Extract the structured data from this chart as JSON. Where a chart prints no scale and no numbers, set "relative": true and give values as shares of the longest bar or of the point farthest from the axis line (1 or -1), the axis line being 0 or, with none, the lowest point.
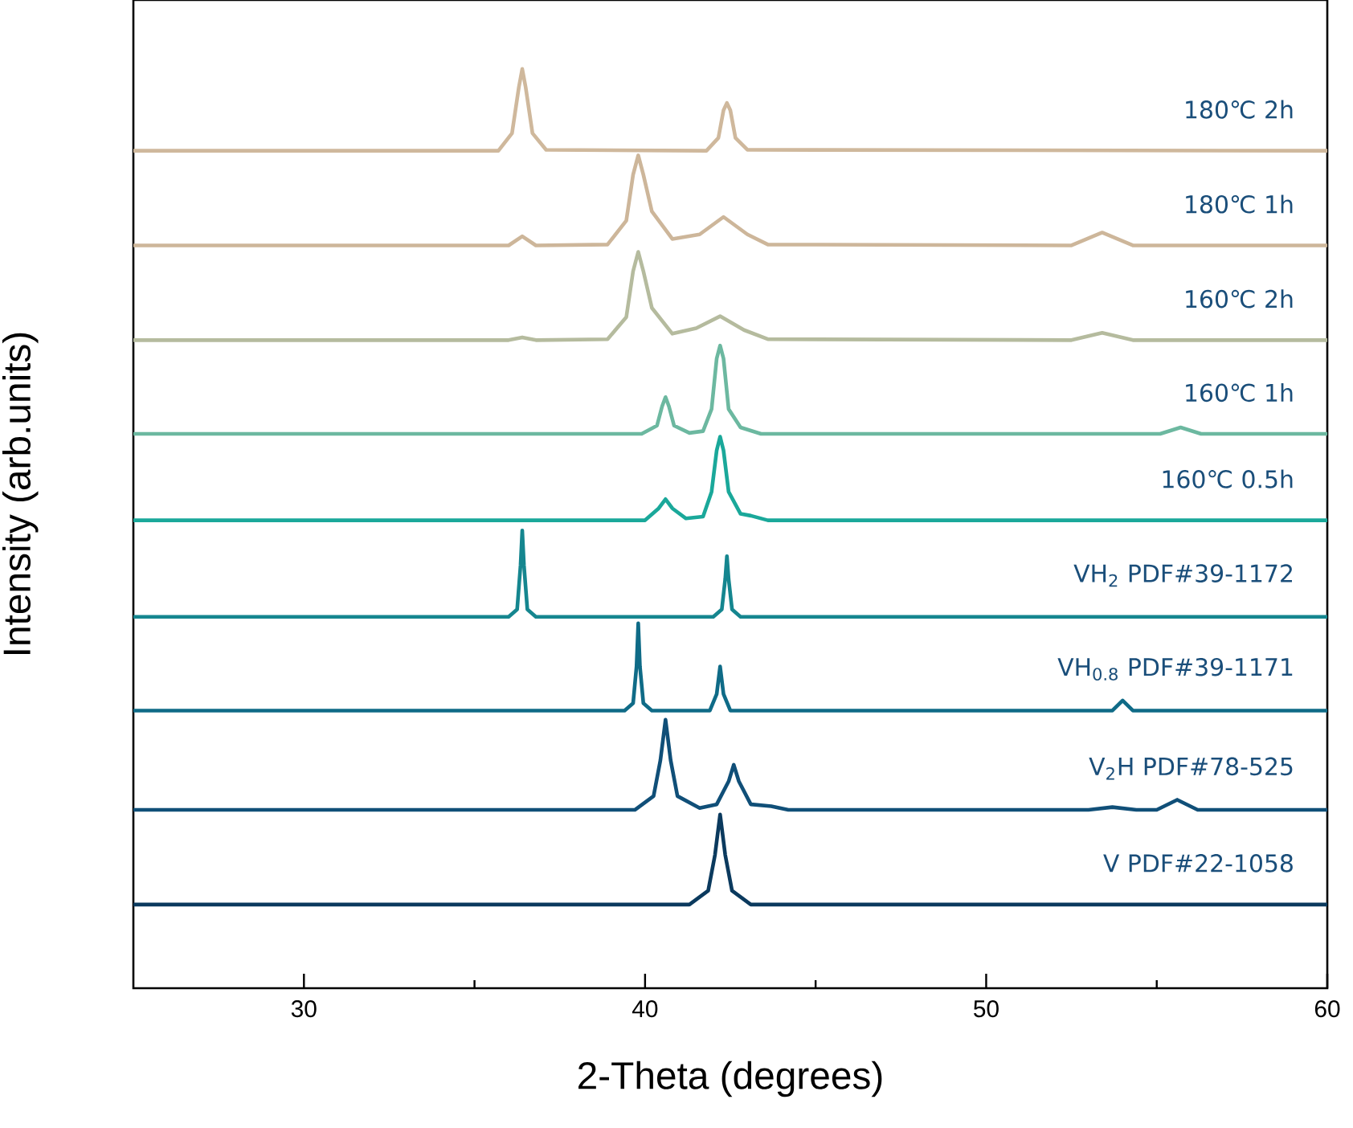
{
  "chart_data": {
    "type": "line",
    "relative": true,
    "xlabel": "2-Theta (degrees)",
    "ylabel": "Intensity (arb.units)",
    "xlim": [
      25,
      60
    ],
    "xticks": [
      30,
      {
        "value": 35,
        "label": null
      },
      40,
      {
        "value": 45,
        "label": null
      },
      50,
      {
        "value": 55,
        "label": null
      },
      60
    ],
    "series": [
      {
        "name": "180℃ 2h",
        "color": "#cfb89c",
        "x": [
          25,
          35.7,
          36.1,
          36.3,
          36.4,
          36.5,
          36.7,
          37.1,
          41.8,
          42.15,
          42.3,
          42.4,
          42.5,
          42.65,
          43.0,
          60
        ],
        "values": [
          0.911,
          0.911,
          0.93,
          0.98,
          1.0,
          0.98,
          0.93,
          0.912,
          0.911,
          0.925,
          0.955,
          0.963,
          0.955,
          0.925,
          0.912,
          0.911
        ]
      },
      {
        "name": "180℃ 1h",
        "color": "#cdb69a",
        "x": [
          25,
          36.0,
          36.4,
          36.8,
          38.9,
          39.45,
          39.65,
          39.8,
          39.95,
          40.2,
          40.8,
          41.6,
          42.3,
          43.0,
          43.6,
          52.5,
          53.4,
          54.3,
          60
        ],
        "values": [
          0.808,
          0.808,
          0.818,
          0.808,
          0.809,
          0.835,
          0.885,
          0.906,
          0.885,
          0.845,
          0.815,
          0.82,
          0.839,
          0.82,
          0.809,
          0.808,
          0.822,
          0.808,
          0.808
        ]
      },
      {
        "name": "160℃ 2h",
        "color": "#b5bb9e",
        "x": [
          25,
          36.0,
          36.4,
          36.8,
          38.9,
          39.45,
          39.65,
          39.8,
          39.95,
          40.2,
          40.8,
          41.5,
          42.2,
          42.9,
          43.6,
          52.5,
          53.4,
          54.3,
          60
        ],
        "values": [
          0.705,
          0.705,
          0.708,
          0.705,
          0.706,
          0.73,
          0.78,
          0.801,
          0.78,
          0.74,
          0.712,
          0.718,
          0.731,
          0.716,
          0.706,
          0.705,
          0.713,
          0.705,
          0.705
        ]
      },
      {
        "name": "160℃ 1h",
        "color": "#6cb8a0",
        "x": [
          25,
          39.9,
          40.35,
          40.5,
          40.6,
          40.7,
          40.85,
          41.3,
          41.7,
          41.95,
          42.1,
          42.2,
          42.3,
          42.45,
          42.8,
          43.4,
          55.1,
          55.7,
          56.3,
          60
        ],
        "values": [
          0.603,
          0.603,
          0.612,
          0.633,
          0.643,
          0.633,
          0.612,
          0.604,
          0.606,
          0.63,
          0.685,
          0.699,
          0.685,
          0.63,
          0.61,
          0.603,
          0.603,
          0.61,
          0.603,
          0.603
        ]
      },
      {
        "name": "160℃ 0.5h",
        "color": "#1aa89a",
        "x": [
          25,
          40.0,
          40.4,
          40.6,
          40.8,
          41.2,
          41.7,
          41.95,
          42.1,
          42.2,
          42.3,
          42.45,
          42.8,
          43.1,
          43.6,
          60
        ],
        "values": [
          0.509,
          0.509,
          0.522,
          0.532,
          0.522,
          0.511,
          0.513,
          0.54,
          0.585,
          0.6,
          0.585,
          0.54,
          0.516,
          0.514,
          0.509,
          0.509
        ]
      },
      {
        "name": "VH$_{2}$ PDF#39-1172",
        "color": "#15868f",
        "x": [
          25,
          36.0,
          36.25,
          36.35,
          36.4,
          36.45,
          36.55,
          36.8,
          42.0,
          42.25,
          42.35,
          42.4,
          42.45,
          42.55,
          42.8,
          60
        ],
        "values": [
          0.404,
          0.404,
          0.412,
          0.46,
          0.498,
          0.46,
          0.412,
          0.404,
          0.404,
          0.412,
          0.445,
          0.47,
          0.445,
          0.412,
          0.404,
          0.404
        ]
      },
      {
        "name": "VH$_{0.8}$ PDF#39-1171",
        "color": "#0f6b87",
        "x": [
          25,
          39.4,
          39.65,
          39.75,
          39.8,
          39.85,
          39.95,
          40.2,
          41.9,
          42.1,
          42.2,
          42.3,
          42.5,
          53.7,
          54.0,
          54.3,
          60
        ],
        "values": [
          0.302,
          0.302,
          0.31,
          0.35,
          0.397,
          0.35,
          0.31,
          0.302,
          0.302,
          0.32,
          0.35,
          0.32,
          0.302,
          0.302,
          0.313,
          0.302,
          0.302
        ]
      },
      {
        "name": "V$_{2}$H PDF#78-525",
        "color": "#104f78",
        "x": [
          25,
          39.7,
          40.25,
          40.45,
          40.6,
          40.75,
          40.95,
          41.6,
          42.1,
          42.45,
          42.6,
          42.75,
          43.1,
          43.7,
          44.2,
          53.0,
          53.7,
          54.4,
          55.0,
          55.6,
          56.2,
          60
        ],
        "values": [
          0.194,
          0.194,
          0.209,
          0.248,
          0.292,
          0.248,
          0.209,
          0.196,
          0.2,
          0.225,
          0.243,
          0.225,
          0.2,
          0.198,
          0.194,
          0.194,
          0.197,
          0.194,
          0.194,
          0.205,
          0.194,
          0.194
        ]
      },
      {
        "name": "V PDF#22-1058",
        "color": "#0b3a5e",
        "x": [
          25,
          41.3,
          41.85,
          42.05,
          42.2,
          42.35,
          42.55,
          43.1,
          60
        ],
        "values": [
          0.091,
          0.091,
          0.106,
          0.145,
          0.189,
          0.145,
          0.106,
          0.091,
          0.091
        ]
      }
    ]
  }
}
